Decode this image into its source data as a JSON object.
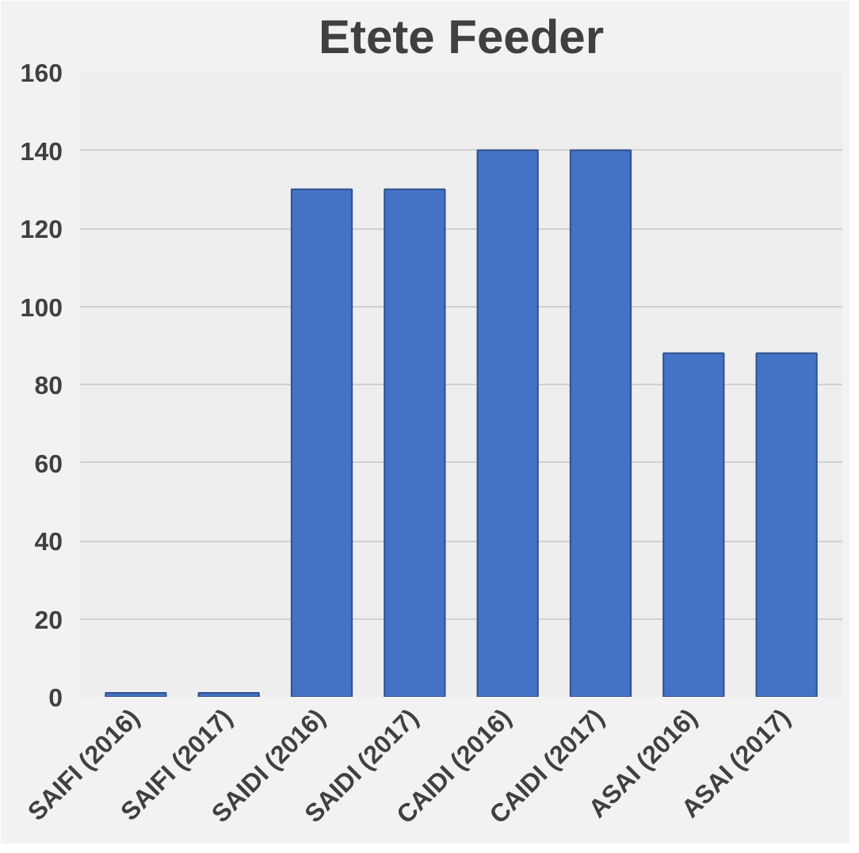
{
  "chart_data": {
    "type": "bar",
    "title": "Etete Feeder",
    "categories": [
      "SAIFI (2016)",
      "SAIFI (2017)",
      "SAIDI (2016)",
      "SAIDI (2017)",
      "CAIDI (2016)",
      "CAIDI (2017)",
      "ASAI (2016)",
      "ASAI (2017)"
    ],
    "values": [
      1,
      1,
      130,
      130,
      140,
      140,
      88,
      88
    ],
    "color": "#4472c4",
    "ylim": [
      0,
      160
    ],
    "yticks": [
      0,
      20,
      40,
      60,
      80,
      100,
      120,
      140,
      160
    ],
    "grid": "y"
  }
}
